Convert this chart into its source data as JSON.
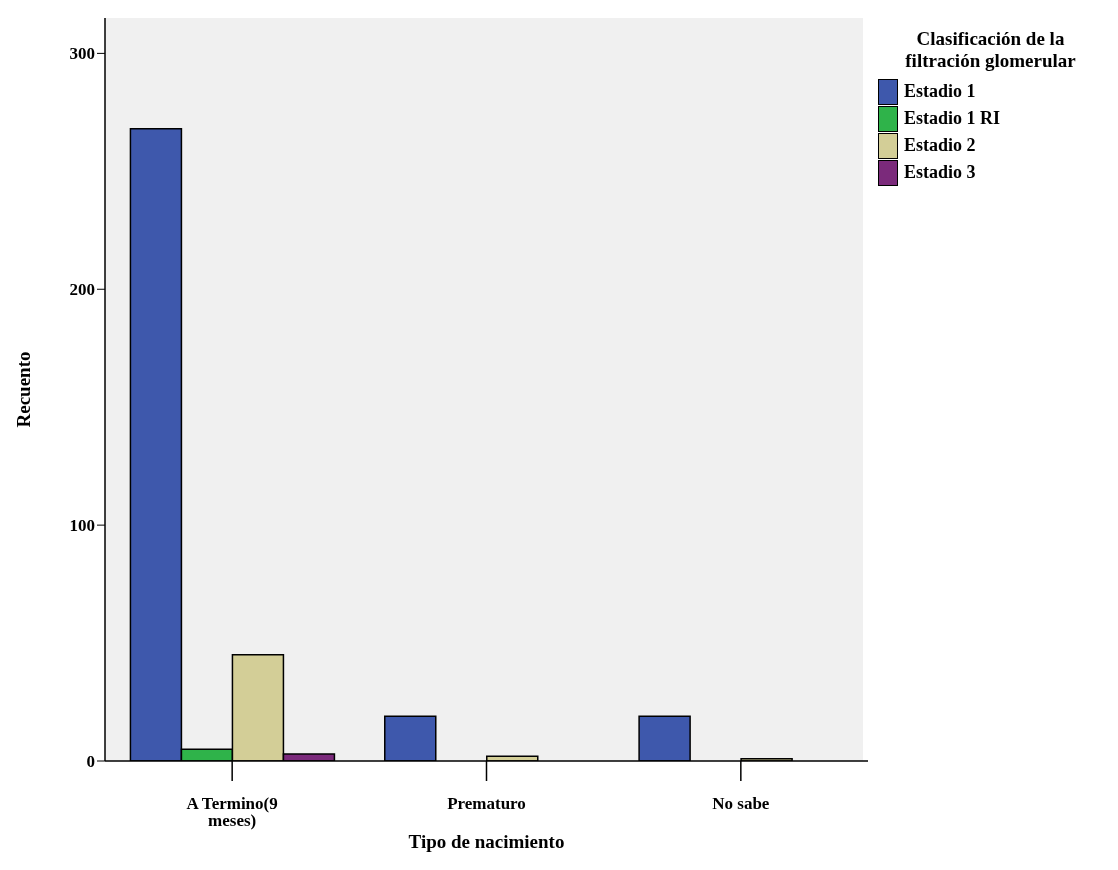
{
  "chart_data": {
    "type": "bar",
    "xlabel": "Tipo de nacimiento",
    "ylabel": "Recuento",
    "legend_title": "Clasificación de la filtración glomerular",
    "categories": [
      "A Termino(9 meses)",
      "Prematuro",
      "No sabe"
    ],
    "series": [
      {
        "name": "Estadio 1",
        "color": "#3e58ac",
        "values": [
          268,
          19,
          19
        ]
      },
      {
        "name": "Estadio 1 RI",
        "color": "#2fb34a",
        "values": [
          5,
          null,
          null
        ]
      },
      {
        "name": "Estadio 2",
        "color": "#d3ce97",
        "values": [
          45,
          2,
          1
        ]
      },
      {
        "name": "Estadio 3",
        "color": "#7b2a7b",
        "values": [
          3,
          null,
          null
        ]
      }
    ],
    "ylim": [
      0,
      315
    ],
    "yticks": [
      0,
      100,
      200,
      300
    ],
    "grid": false,
    "legend": "top right"
  }
}
